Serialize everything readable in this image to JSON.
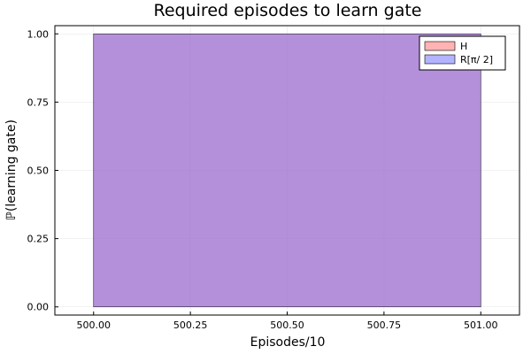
{
  "chart_data": {
    "type": "bar",
    "title": "Required episodes to learn gate",
    "xlabel": "Episodes/10",
    "ylabel": "ℙ(learning gate)",
    "xlim": [
      499.9,
      501.1
    ],
    "ylim": [
      -0.03,
      1.03
    ],
    "xticks": [
      500.0,
      500.25,
      500.5,
      500.75,
      501.0
    ],
    "xtick_labels": [
      "500.00",
      "500.25",
      "500.50",
      "500.75",
      "501.00"
    ],
    "yticks": [
      0.0,
      0.25,
      0.5,
      0.75,
      1.0
    ],
    "ytick_labels": [
      "0.00",
      "0.25",
      "0.50",
      "0.75",
      "1.00"
    ],
    "grid": true,
    "legend_position": "top-right",
    "series": [
      {
        "name": "H",
        "color": "#ff6b6b",
        "opacity": 0.5,
        "bins": [
          {
            "x0": 500.0,
            "x1": 501.0,
            "value": 1.0
          }
        ]
      },
      {
        "name": "R[π/ 2]",
        "color": "#6b6bff",
        "opacity": 0.5,
        "bins": [
          {
            "x0": 500.0,
            "x1": 501.0,
            "value": 1.0
          }
        ]
      }
    ]
  }
}
